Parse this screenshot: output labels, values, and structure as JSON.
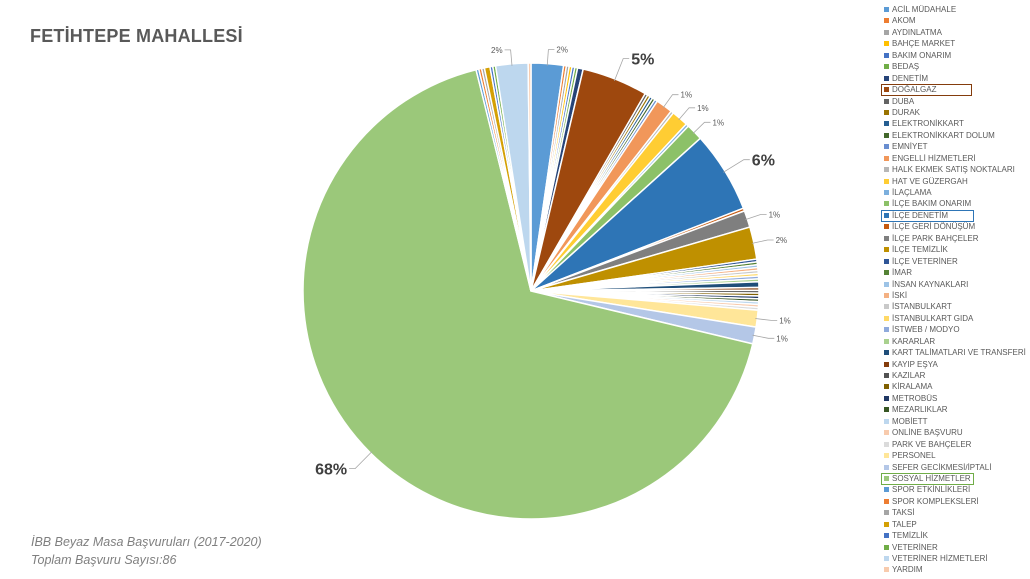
{
  "title": "FETİHTEPE MAHALLESİ",
  "footnote_source": "İBB Beyaz Masa Başvuruları (2017-2020)",
  "footnote_total": "Toplam Başvuru Sayısı:86",
  "highlight_colors": {
    "DOĞALGAZ": "#843C0C",
    "İLÇE DENETİM": "#2E75B6",
    "SOSYAL HİZMETLER": "#70AD47"
  },
  "chart_data": {
    "type": "pie",
    "title": "FETİHTEPE MAHALLESİ",
    "legend_position": "right",
    "categories": [
      "ACİL MÜDAHALE",
      "AKOM",
      "AYDINLATMA",
      "BAHÇE MARKET",
      "BAKIM ONARIM",
      "BEDAŞ",
      "DENETİM",
      "DOĞALGAZ",
      "DUBA",
      "DURAK",
      "ELEKTRONİKKART",
      "ELEKTRONİKKART DOLUM",
      "EMNİYET",
      "ENGELLİ HİZMETLERİ",
      "HALK EKMEK SATIŞ NOKTALARI",
      "HAT VE GÜZERGAH",
      "İLAÇLAMA",
      "İLÇE BAKIM ONARIM",
      "İLÇE DENETİM",
      "İLÇE GERİ DÖNÜŞÜM",
      "İLÇE PARK BAHÇELER",
      "İLÇE TEMİZLİK",
      "İLÇE VETERİNER",
      "İMAR",
      "İNSAN KAYNAKLARI",
      "İSKİ",
      "İSTANBULKART",
      "İSTANBULKART GIDA",
      "İSTWEB / MODYO",
      "KARARLAR",
      "KART TALİMATLARI VE TRANSFERİ",
      "KAYIP EŞYA",
      "KAZILAR",
      "KİRALAMA",
      "METROBÜS",
      "MEZARLIKLAR",
      "MOBİETT",
      "ONLİNE BAŞVURU",
      "PARK VE BAHÇELER",
      "PERSONEL",
      "SEFER GECİKMESİ/İPTALİ",
      "SOSYAL HİZMETLER",
      "SPOR ETKİNLİKLERİ",
      "SPOR KOMPLEKSLERİ",
      "TAKSİ",
      "TALEP",
      "TEMİZLİK",
      "VETERİNER",
      "VETERİNER HİZMETLERİ",
      "YARDIM"
    ],
    "colors": [
      "#5B9BD5",
      "#ED7D31",
      "#A5A5A5",
      "#FFC000",
      "#4472C4",
      "#70AD47",
      "#264478",
      "#9E480E",
      "#636363",
      "#997300",
      "#255E91",
      "#43682B",
      "#698ED0",
      "#F1975A",
      "#B7B7B7",
      "#FFCD33",
      "#7CAFDD",
      "#8CC168",
      "#2E75B6",
      "#C55A11",
      "#7F7F7F",
      "#BF9000",
      "#2F5597",
      "#548235",
      "#9DC3E6",
      "#F4B183",
      "#C9C9C9",
      "#FFD966",
      "#8FAADC",
      "#A9D18E",
      "#1F4E79",
      "#843C0C",
      "#525252",
      "#806000",
      "#203864",
      "#375623",
      "#BDD7EE",
      "#F8CBAD",
      "#DBDBDB",
      "#FFE699",
      "#B4C7E7",
      "#9BC87A",
      "#5B9BD5",
      "#ED7D31",
      "#A5A5A5",
      "#D4A004",
      "#4472C4",
      "#70AD47",
      "#BDD7EE",
      "#F8CBAD"
    ],
    "values": [
      2.3,
      0.2,
      0.2,
      0.2,
      0.2,
      0.2,
      0.4,
      4.7,
      0.2,
      0.2,
      0.2,
      0.2,
      0.2,
      1.2,
      0.2,
      1.2,
      0.2,
      1.2,
      5.8,
      0.2,
      1.2,
      2.3,
      0.2,
      0.2,
      0.2,
      0.2,
      0.2,
      0.2,
      0.2,
      0.2,
      0.4,
      0.2,
      0.2,
      0.2,
      0.2,
      0.2,
      0.2,
      0.2,
      0.2,
      1.2,
      1.2,
      67.8,
      0.2,
      0.2,
      0.2,
      0.4,
      0.2,
      0.2,
      2.3,
      0.2
    ],
    "data_labels": [
      {
        "category": "ACİL MÜDAHALE",
        "text": "2%"
      },
      {
        "category": "DOĞALGAZ",
        "text": "5%"
      },
      {
        "category": "ENGELLİ HİZMETLERİ",
        "text": "1%"
      },
      {
        "category": "HAT VE GÜZERGAH",
        "text": "1%"
      },
      {
        "category": "İLÇE BAKIM ONARIM",
        "text": "1%"
      },
      {
        "category": "İLÇE DENETİM",
        "text": "6%"
      },
      {
        "category": "İLÇE PARK BAHÇELER",
        "text": "1%"
      },
      {
        "category": "İLÇE TEMİZLİK",
        "text": "2%"
      },
      {
        "category": "PERSONEL",
        "text": "1%"
      },
      {
        "category": "SEFER GECİKMESİ/İPTALİ",
        "text": "1%"
      },
      {
        "category": "SOSYAL HİZMETLER",
        "text": "68%"
      },
      {
        "category": "VETERİNER HİZMETLERİ",
        "text": "2%"
      }
    ]
  }
}
